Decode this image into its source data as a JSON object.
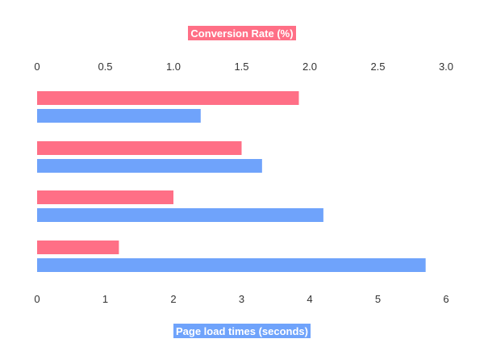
{
  "chart_data": {
    "type": "bar",
    "orientation": "horizontal",
    "top_axis": {
      "label": "Conversion Rate (%)",
      "ticks": [
        "0",
        "0.5",
        "1.0",
        "1.5",
        "2.0",
        "2.5",
        "3.0"
      ],
      "range": [
        0,
        3.0
      ]
    },
    "bottom_axis": {
      "label": "Page load times (seconds)",
      "ticks": [
        "0",
        "1",
        "2",
        "3",
        "4",
        "5",
        "6"
      ],
      "range": [
        0,
        6
      ]
    },
    "series": [
      {
        "axis": "top",
        "color": "#FF6F86",
        "values": [
          1.92,
          1.5,
          1.0,
          0.6
        ]
      },
      {
        "axis": "bottom",
        "color": "#6FA3FB",
        "values": [
          2.4,
          3.3,
          4.2,
          5.7
        ]
      }
    ],
    "grid": false,
    "legend": "none"
  }
}
